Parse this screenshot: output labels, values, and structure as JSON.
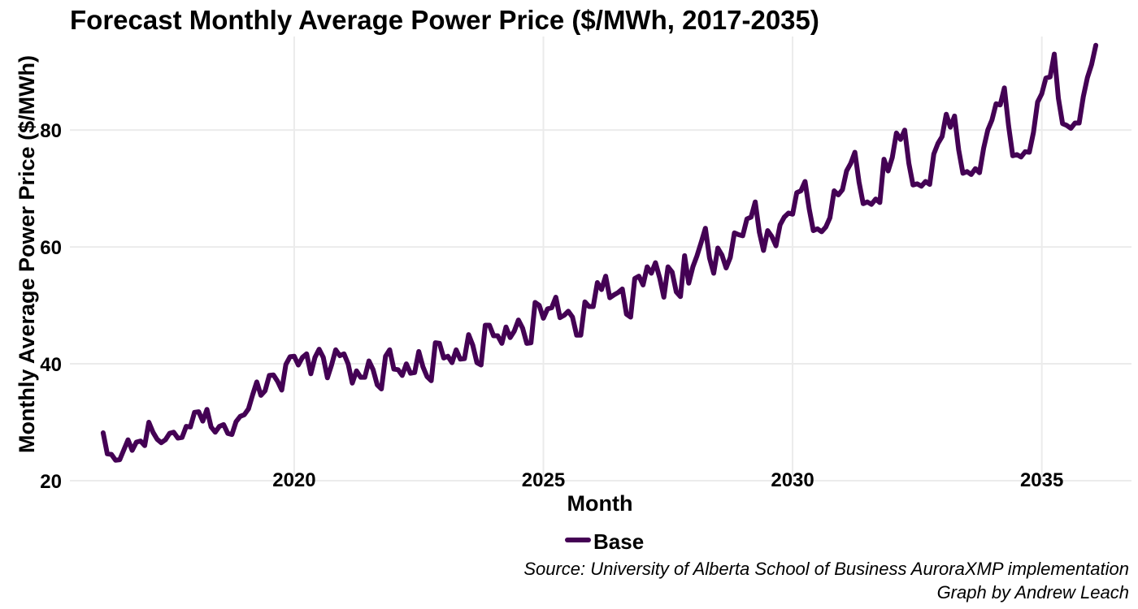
{
  "chart_data": {
    "type": "line",
    "title": "Forecast Monthly Average Power Price ($/MWh, 2017-2035)",
    "xlabel": "Month",
    "ylabel": "Monthly Average Power Price ($/MWh)",
    "x_ticks": [
      "2020",
      "2025",
      "2030",
      "2035"
    ],
    "y_ticks": [
      "20",
      "40",
      "60",
      "80"
    ],
    "x_range": [
      2015.5,
      2036.8
    ],
    "ylim": [
      20,
      96
    ],
    "grid": true,
    "legend": "bottom",
    "caption": [
      "Source: University of Alberta School of Business AuroraXMP implementation",
      "Graph by Andrew Leach"
    ],
    "colors": {
      "series_line": "#440154",
      "grid": "#ebebeb"
    },
    "series": [
      {
        "name": "Base",
        "start_date": "2016-03",
        "frequency": "monthly",
        "values": [
          28.2,
          24.6,
          24.5,
          23.5,
          23.6,
          25.3,
          27.0,
          25.2,
          26.6,
          26.8,
          26.0,
          30.0,
          28.3,
          27.1,
          26.5,
          27.0,
          28.1,
          28.3,
          27.3,
          27.4,
          29.3,
          29.2,
          31.7,
          31.8,
          30.2,
          32.2,
          29.2,
          28.3,
          29.3,
          29.6,
          28.1,
          27.9,
          30.1,
          31.0,
          31.3,
          32.3,
          34.7,
          36.9,
          34.6,
          35.4,
          38.0,
          38.1,
          37.0,
          35.5,
          39.9,
          41.2,
          41.3,
          39.8,
          41.1,
          41.7,
          38.3,
          41.1,
          42.5,
          41.1,
          37.6,
          39.8,
          42.4,
          41.4,
          41.7,
          40.0,
          36.7,
          38.8,
          37.7,
          37.7,
          40.5,
          39.0,
          36.4,
          35.7,
          41.3,
          42.4,
          39.1,
          39.0,
          38.0,
          40.0,
          38.4,
          38.5,
          42.1,
          39.5,
          37.8,
          37.1,
          43.6,
          43.5,
          41.0,
          41.3,
          40.2,
          42.4,
          40.8,
          40.9,
          45.0,
          43.2,
          40.2,
          39.8,
          46.6,
          46.6,
          44.8,
          44.8,
          43.5,
          46.3,
          44.5,
          45.6,
          47.5,
          46.1,
          43.5,
          43.6,
          50.5,
          50.0,
          47.8,
          49.4,
          49.6,
          51.4,
          47.9,
          48.3,
          49.0,
          48.0,
          44.9,
          44.9,
          50.6,
          49.8,
          49.8,
          53.9,
          52.7,
          55.0,
          51.3,
          51.8,
          52.2,
          52.8,
          48.5,
          48.0,
          54.6,
          55.0,
          53.5,
          56.6,
          55.5,
          57.3,
          54.7,
          51.4,
          56.6,
          55.7,
          52.3,
          51.5,
          58.5,
          53.8,
          56.6,
          58.5,
          60.8,
          63.2,
          58.1,
          55.5,
          59.8,
          58.6,
          56.4,
          58.2,
          62.4,
          62.1,
          61.9,
          64.8,
          65.1,
          67.7,
          62.5,
          59.4,
          62.8,
          61.8,
          60.2,
          63.8,
          65.1,
          65.8,
          65.6,
          69.3,
          69.6,
          71.2,
          66.5,
          62.8,
          63.1,
          62.6,
          63.4,
          65.0,
          69.6,
          68.9,
          69.8,
          73.0,
          74.3,
          76.2,
          71.1,
          67.4,
          67.7,
          67.3,
          68.2,
          67.6,
          75.0,
          73.0,
          75.3,
          79.5,
          78.4,
          80.0,
          74.3,
          70.6,
          70.8,
          70.4,
          71.2,
          70.7,
          75.9,
          77.7,
          78.9,
          82.7,
          80.5,
          82.4,
          76.6,
          72.6,
          72.9,
          72.4,
          73.4,
          72.7,
          76.9,
          80.0,
          81.7,
          84.5,
          84.3,
          87.2,
          80.7,
          75.6,
          75.8,
          75.4,
          76.3,
          76.2,
          79.6,
          84.8,
          86.2,
          88.9,
          89.1,
          93.0,
          85.4,
          81.1,
          80.8,
          80.3,
          81.2,
          81.2,
          85.7,
          89.0,
          91.2,
          94.5
        ]
      }
    ]
  }
}
